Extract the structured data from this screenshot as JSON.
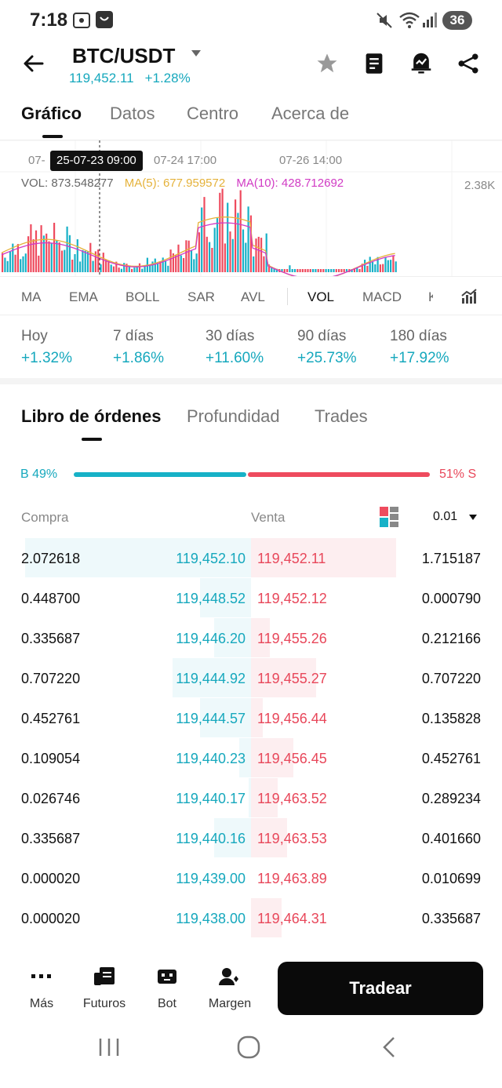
{
  "status_bar": {
    "time": "7:18",
    "battery": "36"
  },
  "header": {
    "pair": "BTC/USDT",
    "price": "119,452.11",
    "change": "+1.28%"
  },
  "main_tabs": [
    {
      "label": "Gráfico"
    },
    {
      "label": "Datos"
    },
    {
      "label": "Centro"
    },
    {
      "label": "Acerca de"
    }
  ],
  "chart": {
    "x_labels": [
      "07-",
      "07-24 17:00",
      "07-26 14:00"
    ],
    "tooltip": "25-07-23 09:00",
    "vol": "VOL: 873.548277",
    "ma5": "MA(5): 677.959572",
    "ma10": "MA(10): 428.712692",
    "y_max_label": "2.38K",
    "colors": {
      "buy": "#17b1c7",
      "sell": "#ee4b5e",
      "ma5": "#e5b23a",
      "ma10": "#d13bc4"
    }
  },
  "indicators": [
    "MA",
    "EMA",
    "BOLL",
    "SAR",
    "AVL",
    "VOL",
    "MACD",
    "K"
  ],
  "performance": [
    {
      "label": "Hoy",
      "value": "+1.32%"
    },
    {
      "label": "7 días",
      "value": "+1.86%"
    },
    {
      "label": "30 días",
      "value": "+11.60%"
    },
    {
      "label": "90 días",
      "value": "+25.73%"
    },
    {
      "label": "180 días",
      "value": "+17.92%"
    }
  ],
  "book_tabs": [
    {
      "label": "Libro de órdenes"
    },
    {
      "label": "Profundidad"
    },
    {
      "label": "Trades"
    }
  ],
  "ratio": {
    "buy_label": "B 49%",
    "sell_label": "51% S",
    "buy": 0.49,
    "sell": 0.51
  },
  "columns": {
    "buy": "Compra",
    "sell": "Venta",
    "precision": "0.01"
  },
  "orders": [
    {
      "bid_qty": "2.072618",
      "bid_price": "119,452.10",
      "ask_price": "119,452.11",
      "ask_qty": "1.715187",
      "bid_depth": 0.98,
      "ask_depth": 0.76
    },
    {
      "bid_qty": "0.448700",
      "bid_price": "119,448.52",
      "ask_price": "119,452.12",
      "ask_qty": "0.000790",
      "bid_depth": 0.22,
      "ask_depth": 0.0
    },
    {
      "bid_qty": "0.335687",
      "bid_price": "119,446.20",
      "ask_price": "119,455.26",
      "ask_qty": "0.212166",
      "bid_depth": 0.16,
      "ask_depth": 0.1
    },
    {
      "bid_qty": "0.707220",
      "bid_price": "119,444.92",
      "ask_price": "119,455.27",
      "ask_qty": "0.707220",
      "bid_depth": 0.34,
      "ask_depth": 0.34
    },
    {
      "bid_qty": "0.452761",
      "bid_price": "119,444.57",
      "ask_price": "119,456.44",
      "ask_qty": "0.135828",
      "bid_depth": 0.22,
      "ask_depth": 0.06
    },
    {
      "bid_qty": "0.109054",
      "bid_price": "119,440.23",
      "ask_price": "119,456.45",
      "ask_qty": "0.452761",
      "bid_depth": 0.05,
      "ask_depth": 0.22
    },
    {
      "bid_qty": "0.026746",
      "bid_price": "119,440.17",
      "ask_price": "119,463.52",
      "ask_qty": "0.289234",
      "bid_depth": 0.01,
      "ask_depth": 0.14
    },
    {
      "bid_qty": "0.335687",
      "bid_price": "119,440.16",
      "ask_price": "119,463.53",
      "ask_qty": "0.401660",
      "bid_depth": 0.16,
      "ask_depth": 0.19
    },
    {
      "bid_qty": "0.000020",
      "bid_price": "119,439.00",
      "ask_price": "119,463.89",
      "ask_qty": "0.010699",
      "bid_depth": 0.0,
      "ask_depth": 0.0
    },
    {
      "bid_qty": "0.000020",
      "bid_price": "119,438.00",
      "ask_price": "119,464.31",
      "ask_qty": "0.335687",
      "bid_depth": 0.0,
      "ask_depth": 0.16
    }
  ],
  "bottom_nav": [
    {
      "label": "Más",
      "icon": "more-dots-icon"
    },
    {
      "label": "Futuros",
      "icon": "futures-icon"
    },
    {
      "label": "Bot",
      "icon": "bot-icon"
    },
    {
      "label": "Margen",
      "icon": "margin-icon"
    }
  ],
  "trade_button": "Tradear"
}
